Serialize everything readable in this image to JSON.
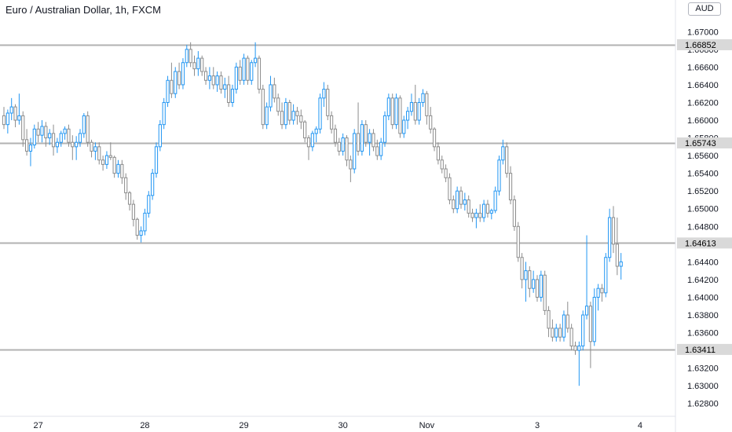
{
  "chart_data": {
    "type": "candlestick",
    "title": "Euro / Australian Dollar, 1h, FXCM",
    "currency": "AUD",
    "ylim": [
      1.627,
      1.6718
    ],
    "y_ticks": [
      "1.62800",
      "1.63000",
      "1.63200",
      "1.63400",
      "1.63600",
      "1.63800",
      "1.64000",
      "1.64200",
      "1.64400",
      "1.64600",
      "1.64800",
      "1.65000",
      "1.65200",
      "1.65400",
      "1.65600",
      "1.65800",
      "1.66000",
      "1.66200",
      "1.66400",
      "1.66600",
      "1.66800",
      "1.67000"
    ],
    "x_ticks": [
      {
        "label": "27",
        "index": 9
      },
      {
        "label": "28",
        "index": 37
      },
      {
        "label": "29",
        "index": 63
      },
      {
        "label": "30",
        "index": 89
      },
      {
        "label": "Nov",
        "index": 111
      },
      {
        "label": "3",
        "index": 140
      },
      {
        "label": "4",
        "index": 167
      }
    ],
    "horizontal_lines": [
      {
        "value": 1.66852,
        "label": "1.66852"
      },
      {
        "value": 1.65743,
        "label": "1.65743"
      },
      {
        "value": 1.64613,
        "label": "1.64613"
      },
      {
        "value": 1.63411,
        "label": "1.63411"
      }
    ],
    "colors": {
      "up": "#2196f3",
      "down": "#8c8c8c",
      "level": "#b2b2b2",
      "level_label_bg": "#d9d9d9",
      "axis_text": "#131722"
    },
    "candles": [
      [
        1.6605,
        1.6615,
        1.659,
        1.6595
      ],
      [
        1.6595,
        1.6612,
        1.6585,
        1.6608
      ],
      [
        1.6608,
        1.6625,
        1.66,
        1.6615
      ],
      [
        1.6615,
        1.6618,
        1.6592,
        1.66
      ],
      [
        1.66,
        1.663,
        1.6595,
        1.6605
      ],
      [
        1.6605,
        1.661,
        1.657,
        1.6578
      ],
      [
        1.6578,
        1.659,
        1.656,
        1.6565
      ],
      [
        1.6565,
        1.658,
        1.6548,
        1.6572
      ],
      [
        1.6572,
        1.6595,
        1.6568,
        1.659
      ],
      [
        1.659,
        1.6598,
        1.6575,
        1.6583
      ],
      [
        1.6583,
        1.66,
        1.6575,
        1.6593
      ],
      [
        1.6593,
        1.6598,
        1.657,
        1.658
      ],
      [
        1.658,
        1.659,
        1.6572,
        1.6585
      ],
      [
        1.6585,
        1.6595,
        1.656,
        1.657
      ],
      [
        1.657,
        1.658,
        1.6563,
        1.6575
      ],
      [
        1.6575,
        1.6588,
        1.657,
        1.6585
      ],
      [
        1.6585,
        1.6593,
        1.6578,
        1.659
      ],
      [
        1.659,
        1.6595,
        1.657,
        1.6575
      ],
      [
        1.6575,
        1.6583,
        1.6555,
        1.657
      ],
      [
        1.657,
        1.6582,
        1.6555,
        1.6575
      ],
      [
        1.6575,
        1.659,
        1.657,
        1.6585
      ],
      [
        1.6585,
        1.6608,
        1.658,
        1.6605
      ],
      [
        1.6605,
        1.661,
        1.657,
        1.6575
      ],
      [
        1.6575,
        1.6578,
        1.6558,
        1.6565
      ],
      [
        1.6565,
        1.6575,
        1.6555,
        1.657
      ],
      [
        1.657,
        1.6575,
        1.655,
        1.6555
      ],
      [
        1.6555,
        1.656,
        1.6543,
        1.655
      ],
      [
        1.655,
        1.6565,
        1.6545,
        1.656
      ],
      [
        1.656,
        1.6575,
        1.6555,
        1.6558
      ],
      [
        1.6558,
        1.656,
        1.6535,
        1.654
      ],
      [
        1.654,
        1.6555,
        1.6535,
        1.655
      ],
      [
        1.655,
        1.6555,
        1.6528,
        1.6535
      ],
      [
        1.6535,
        1.654,
        1.651,
        1.6518
      ],
      [
        1.6518,
        1.652,
        1.6498,
        1.6505
      ],
      [
        1.6505,
        1.651,
        1.648,
        1.6488
      ],
      [
        1.6488,
        1.649,
        1.6465,
        1.647
      ],
      [
        1.647,
        1.648,
        1.6462,
        1.6475
      ],
      [
        1.6475,
        1.65,
        1.647,
        1.6495
      ],
      [
        1.6495,
        1.652,
        1.649,
        1.6515
      ],
      [
        1.6515,
        1.6545,
        1.651,
        1.654
      ],
      [
        1.654,
        1.6575,
        1.6535,
        1.657
      ],
      [
        1.657,
        1.66,
        1.6565,
        1.6595
      ],
      [
        1.6595,
        1.6625,
        1.659,
        1.662
      ],
      [
        1.662,
        1.665,
        1.6615,
        1.6645
      ],
      [
        1.6645,
        1.6665,
        1.6625,
        1.663
      ],
      [
        1.663,
        1.666,
        1.6625,
        1.6655
      ],
      [
        1.6655,
        1.6665,
        1.6635,
        1.664
      ],
      [
        1.664,
        1.667,
        1.6635,
        1.6665
      ],
      [
        1.6665,
        1.6685,
        1.666,
        1.668
      ],
      [
        1.668,
        1.6688,
        1.666,
        1.6665
      ],
      [
        1.6665,
        1.6673,
        1.665,
        1.6658
      ],
      [
        1.6658,
        1.6678,
        1.665,
        1.667
      ],
      [
        1.667,
        1.6673,
        1.665,
        1.6655
      ],
      [
        1.6655,
        1.666,
        1.664,
        1.6645
      ],
      [
        1.6645,
        1.666,
        1.6635,
        1.665
      ],
      [
        1.665,
        1.666,
        1.6635,
        1.664
      ],
      [
        1.664,
        1.6655,
        1.6632,
        1.665
      ],
      [
        1.665,
        1.6655,
        1.663,
        1.6635
      ],
      [
        1.6635,
        1.6648,
        1.6625,
        1.664
      ],
      [
        1.664,
        1.665,
        1.6615,
        1.662
      ],
      [
        1.662,
        1.664,
        1.6615,
        1.6635
      ],
      [
        1.6635,
        1.6665,
        1.663,
        1.666
      ],
      [
        1.666,
        1.6668,
        1.664,
        1.6645
      ],
      [
        1.6645,
        1.6675,
        1.664,
        1.667
      ],
      [
        1.667,
        1.6673,
        1.664,
        1.6645
      ],
      [
        1.6645,
        1.6668,
        1.664,
        1.6665
      ],
      [
        1.6665,
        1.6688,
        1.666,
        1.667
      ],
      [
        1.667,
        1.6673,
        1.663,
        1.6635
      ],
      [
        1.6635,
        1.664,
        1.659,
        1.6595
      ],
      [
        1.6595,
        1.662,
        1.659,
        1.6615
      ],
      [
        1.6615,
        1.665,
        1.661,
        1.664
      ],
      [
        1.664,
        1.6648,
        1.662,
        1.6625
      ],
      [
        1.6625,
        1.663,
        1.6605,
        1.661
      ],
      [
        1.661,
        1.662,
        1.659,
        1.6595
      ],
      [
        1.6595,
        1.6625,
        1.659,
        1.662
      ],
      [
        1.662,
        1.6623,
        1.6595,
        1.66
      ],
      [
        1.66,
        1.6618,
        1.6595,
        1.661
      ],
      [
        1.661,
        1.6615,
        1.6595,
        1.6605
      ],
      [
        1.6605,
        1.6612,
        1.659,
        1.6598
      ],
      [
        1.6598,
        1.66,
        1.6575,
        1.658
      ],
      [
        1.658,
        1.6583,
        1.6555,
        1.657
      ],
      [
        1.657,
        1.6588,
        1.6565,
        1.6585
      ],
      [
        1.6585,
        1.6593,
        1.6575,
        1.659
      ],
      [
        1.659,
        1.663,
        1.6585,
        1.6625
      ],
      [
        1.6625,
        1.6643,
        1.6615,
        1.6635
      ],
      [
        1.6635,
        1.664,
        1.66,
        1.6605
      ],
      [
        1.6605,
        1.661,
        1.6585,
        1.659
      ],
      [
        1.659,
        1.6595,
        1.657,
        1.6575
      ],
      [
        1.6575,
        1.658,
        1.656,
        1.6565
      ],
      [
        1.6565,
        1.6585,
        1.656,
        1.658
      ],
      [
        1.658,
        1.6583,
        1.6548,
        1.6555
      ],
      [
        1.6555,
        1.656,
        1.653,
        1.6545
      ],
      [
        1.6545,
        1.659,
        1.654,
        1.6585
      ],
      [
        1.6585,
        1.662,
        1.656,
        1.6565
      ],
      [
        1.6565,
        1.66,
        1.656,
        1.6595
      ],
      [
        1.6595,
        1.66,
        1.657,
        1.6575
      ],
      [
        1.6575,
        1.659,
        1.656,
        1.6585
      ],
      [
        1.6585,
        1.659,
        1.6565,
        1.657
      ],
      [
        1.657,
        1.6578,
        1.6555,
        1.656
      ],
      [
        1.656,
        1.658,
        1.6555,
        1.6575
      ],
      [
        1.6575,
        1.661,
        1.657,
        1.6605
      ],
      [
        1.6605,
        1.663,
        1.66,
        1.6625
      ],
      [
        1.6625,
        1.663,
        1.659,
        1.6595
      ],
      [
        1.6595,
        1.663,
        1.659,
        1.6625
      ],
      [
        1.6625,
        1.6628,
        1.658,
        1.6585
      ],
      [
        1.6585,
        1.6605,
        1.658,
        1.66
      ],
      [
        1.66,
        1.6615,
        1.659,
        1.661
      ],
      [
        1.661,
        1.663,
        1.6605,
        1.662
      ],
      [
        1.662,
        1.664,
        1.6595,
        1.66
      ],
      [
        1.66,
        1.6625,
        1.6595,
        1.662
      ],
      [
        1.662,
        1.6635,
        1.6615,
        1.663
      ],
      [
        1.663,
        1.6633,
        1.6595,
        1.6605
      ],
      [
        1.6605,
        1.6615,
        1.6585,
        1.659
      ],
      [
        1.659,
        1.6592,
        1.6565,
        1.657
      ],
      [
        1.657,
        1.6575,
        1.655,
        1.6555
      ],
      [
        1.6555,
        1.656,
        1.654,
        1.6545
      ],
      [
        1.6545,
        1.655,
        1.653,
        1.6535
      ],
      [
        1.6535,
        1.654,
        1.6505,
        1.651
      ],
      [
        1.651,
        1.6515,
        1.6495,
        1.65
      ],
      [
        1.65,
        1.6525,
        1.6495,
        1.652
      ],
      [
        1.652,
        1.6525,
        1.65,
        1.6505
      ],
      [
        1.6505,
        1.6518,
        1.6498,
        1.651
      ],
      [
        1.651,
        1.6515,
        1.649,
        1.6495
      ],
      [
        1.6495,
        1.65,
        1.6485,
        1.649
      ],
      [
        1.649,
        1.65,
        1.6478,
        1.6495
      ],
      [
        1.6495,
        1.6505,
        1.6485,
        1.649
      ],
      [
        1.649,
        1.651,
        1.6485,
        1.6505
      ],
      [
        1.6505,
        1.651,
        1.649,
        1.6495
      ],
      [
        1.6495,
        1.65,
        1.6488,
        1.6498
      ],
      [
        1.6498,
        1.6525,
        1.6495,
        1.652
      ],
      [
        1.652,
        1.656,
        1.6515,
        1.6555
      ],
      [
        1.6555,
        1.6578,
        1.655,
        1.657
      ],
      [
        1.657,
        1.6575,
        1.6535,
        1.654
      ],
      [
        1.654,
        1.6548,
        1.6505,
        1.651
      ],
      [
        1.651,
        1.6515,
        1.6475,
        1.648
      ],
      [
        1.648,
        1.6485,
        1.644,
        1.6445
      ],
      [
        1.6445,
        1.645,
        1.641,
        1.642
      ],
      [
        1.642,
        1.644,
        1.6395,
        1.643
      ],
      [
        1.643,
        1.6435,
        1.64,
        1.641
      ],
      [
        1.641,
        1.643,
        1.6405,
        1.642
      ],
      [
        1.642,
        1.6425,
        1.6395,
        1.64
      ],
      [
        1.64,
        1.643,
        1.6395,
        1.6425
      ],
      [
        1.6425,
        1.643,
        1.638,
        1.6385
      ],
      [
        1.6385,
        1.639,
        1.6355,
        1.6365
      ],
      [
        1.6365,
        1.6375,
        1.635,
        1.6355
      ],
      [
        1.6355,
        1.637,
        1.635,
        1.6365
      ],
      [
        1.6365,
        1.637,
        1.635,
        1.6355
      ],
      [
        1.6355,
        1.6385,
        1.635,
        1.638
      ],
      [
        1.638,
        1.6395,
        1.636,
        1.6365
      ],
      [
        1.6365,
        1.637,
        1.634,
        1.6345
      ],
      [
        1.6345,
        1.635,
        1.6335,
        1.634
      ],
      [
        1.634,
        1.635,
        1.63,
        1.6345
      ],
      [
        1.6345,
        1.6385,
        1.634,
        1.638
      ],
      [
        1.638,
        1.647,
        1.6375,
        1.639
      ],
      [
        1.639,
        1.6395,
        1.632,
        1.635
      ],
      [
        1.635,
        1.641,
        1.6345,
        1.64
      ],
      [
        1.64,
        1.6415,
        1.6385,
        1.641
      ],
      [
        1.641,
        1.6415,
        1.6395,
        1.6405
      ],
      [
        1.6405,
        1.645,
        1.64,
        1.6445
      ],
      [
        1.6445,
        1.65,
        1.644,
        1.649
      ],
      [
        1.649,
        1.6503,
        1.645,
        1.646
      ],
      [
        1.646,
        1.649,
        1.6425,
        1.6435
      ],
      [
        1.6435,
        1.645,
        1.642,
        1.644
      ]
    ]
  }
}
